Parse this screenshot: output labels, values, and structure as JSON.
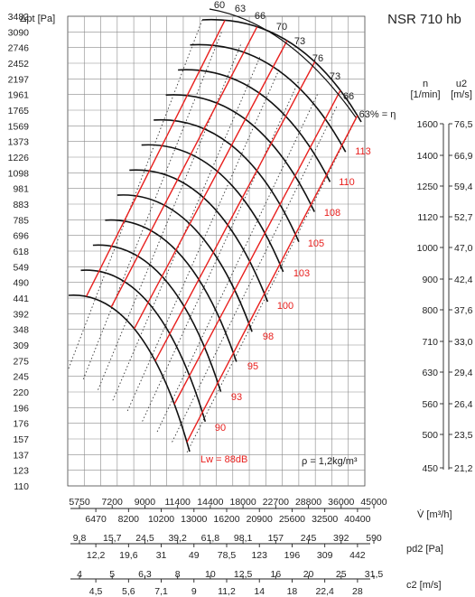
{
  "title": "NSR 710 hb",
  "chart_data": {
    "type": "line",
    "title": "NSR 710 hb",
    "ylabel": "Δpt [Pa]",
    "y_ticks": [
      "3482",
      "3090",
      "2746",
      "2452",
      "2197",
      "1961",
      "1765",
      "1569",
      "1373",
      "1226",
      "1098",
      "981",
      "883",
      "785",
      "696",
      "618",
      "549",
      "490",
      "441",
      "392",
      "348",
      "309",
      "275",
      "245",
      "220",
      "196",
      "176",
      "157",
      "137",
      "123",
      "110"
    ],
    "x_scales": [
      {
        "name": "V [m³/h]",
        "label": "V̇ [m³/h]",
        "top": [
          "5750",
          "7200",
          "9000",
          "11400",
          "14400",
          "18000",
          "22700",
          "28800",
          "36000",
          "45000"
        ],
        "bottom": [
          "6470",
          "8200",
          "10200",
          "13000",
          "16200",
          "20900",
          "25600",
          "32500",
          "40400"
        ]
      },
      {
        "name": "pd2 [Pa]",
        "label": "pd2 [Pa]",
        "top": [
          "9,8",
          "15,7",
          "24,5",
          "39,2",
          "61,8",
          "98,1",
          "157",
          "245",
          "392",
          "590"
        ],
        "bottom": [
          "12,2",
          "19,6",
          "31",
          "49",
          "78,5",
          "123",
          "196",
          "309",
          "442"
        ]
      },
      {
        "name": "c2 [m/s]",
        "label": "c2 [m/s]",
        "top": [
          "4",
          "5",
          "6,3",
          "8",
          "10",
          "12,5",
          "16",
          "20",
          "25",
          "31,5"
        ],
        "bottom": [
          "4,5",
          "5,6",
          "7,1",
          "9",
          "11,2",
          "14",
          "18",
          "22,4",
          "28"
        ]
      }
    ],
    "right_scales": {
      "n_label": "n\n[1/min]",
      "n_label_line1": "n",
      "n_label_line2": "[1/min]",
      "u2_label_line1": "u2",
      "u2_label_line2": "[m/s]",
      "n_ticks": [
        "1600",
        "1400",
        "1250",
        "1120",
        "1000",
        "900",
        "800",
        "710",
        "630",
        "560",
        "500",
        "450"
      ],
      "u2_ticks": [
        "76,5",
        "66,9",
        "59,4",
        "52,7",
        "47,0",
        "42,4",
        "37,6",
        "33,0",
        "29,4",
        "26,4",
        "23,5",
        "21,2"
      ]
    },
    "efficiency_labels": [
      "60",
      "63",
      "66",
      "70",
      "73",
      "76",
      "73",
      "66",
      "63% = η"
    ],
    "sound_labels": [
      "90",
      "93",
      "95",
      "98",
      "100",
      "103",
      "105",
      "108",
      "110",
      "113"
    ],
    "lw_label": "Lw = 88dB",
    "density_label": "ρ = 1,2kg/m³",
    "series": [
      {
        "n": 1600,
        "values": [
          [
            0.52,
            3090
          ],
          [
            0.68,
            2746
          ],
          [
            0.88,
            2197
          ],
          [
            1.0,
            1569
          ]
        ]
      },
      {
        "n": 1400,
        "values": [
          [
            0.45,
            2452
          ],
          [
            0.6,
            2197
          ],
          [
            0.8,
            1765
          ],
          [
            0.92,
            1226
          ]
        ]
      },
      {
        "n": 450,
        "values": [
          [
            0.0,
            392
          ],
          [
            0.2,
            348
          ],
          [
            0.4,
            245
          ],
          [
            0.52,
            123
          ]
        ]
      }
    ],
    "grid": true,
    "log_scale": true
  }
}
